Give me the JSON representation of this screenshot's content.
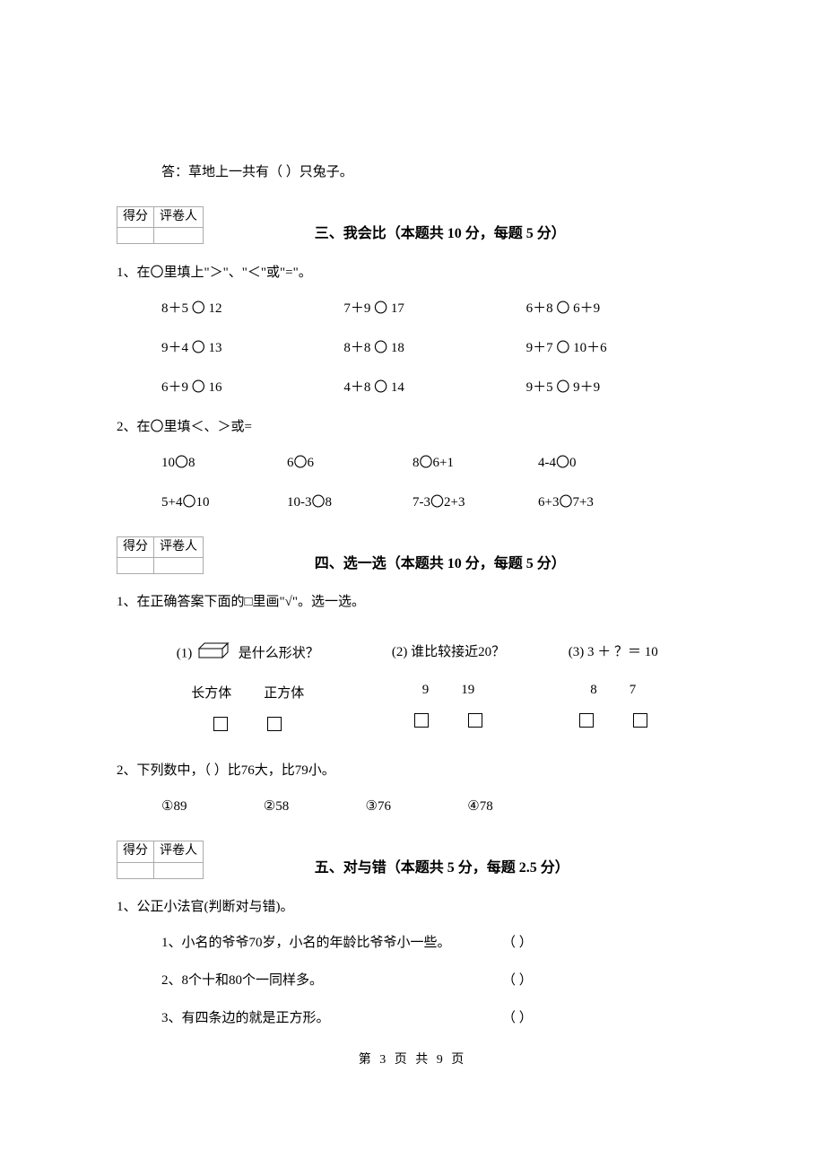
{
  "answer_line": "答：草地上一共有（    ）只兔子。",
  "score_headers": {
    "score": "得分",
    "grader": "评卷人"
  },
  "section3": {
    "title": "三、我会比（本题共 10 分，每题 5 分）",
    "q1_prompt": "1、在〇里填上\"＞\"、\"＜\"或\"=\"。",
    "q1_rows": [
      [
        "8＋5 〇 12",
        "7＋9 〇 17",
        "6＋8 〇 6＋9"
      ],
      [
        "9＋4 〇 13",
        "8＋8 〇 18",
        "9＋7 〇 10＋6"
      ],
      [
        "6＋9 〇 16",
        "4＋8 〇 14",
        "9＋5 〇 9＋9"
      ]
    ],
    "q2_prompt": "2、在〇里填＜、＞或=",
    "q2_rows": [
      [
        "10〇8",
        "6〇6",
        "8〇6+1",
        "4-4〇0"
      ],
      [
        "5+4〇10",
        "10-3〇8",
        "7-3〇2+3",
        "6+3〇7+3"
      ]
    ]
  },
  "section4": {
    "title": "四、选一选（本题共 10 分，每题 5 分）",
    "q1_prompt": "1、在正确答案下面的□里画\"√\"。选一选。",
    "quiz": {
      "c1": {
        "header_pre": "(1)",
        "header_post": "是什么形状？",
        "opts": [
          "长方体",
          "正方体"
        ]
      },
      "c2": {
        "header": "(2) 谁比较接近20？",
        "opts": [
          "9",
          "19"
        ]
      },
      "c3": {
        "header": "(3) 3 ＋ ？＝ 10",
        "opts": [
          "8",
          "7"
        ]
      }
    },
    "q2_prompt": "2、下列数中，（     ）比76大，比79小。",
    "q2_opts": [
      "①89",
      "②58",
      "③76",
      "④78"
    ]
  },
  "section5": {
    "title": "五、对与错（本题共 5 分，每题 2.5 分）",
    "q1_prompt": "1、公正小法官(判断对与错)。",
    "items": [
      "1、小名的爷爷70岁，小名的年龄比爷爷小一些。",
      "2、8个十和80个一同样多。",
      "3、有四条边的就是正方形。"
    ],
    "paren": "（      ）"
  },
  "footer": "第 3 页 共 9 页"
}
